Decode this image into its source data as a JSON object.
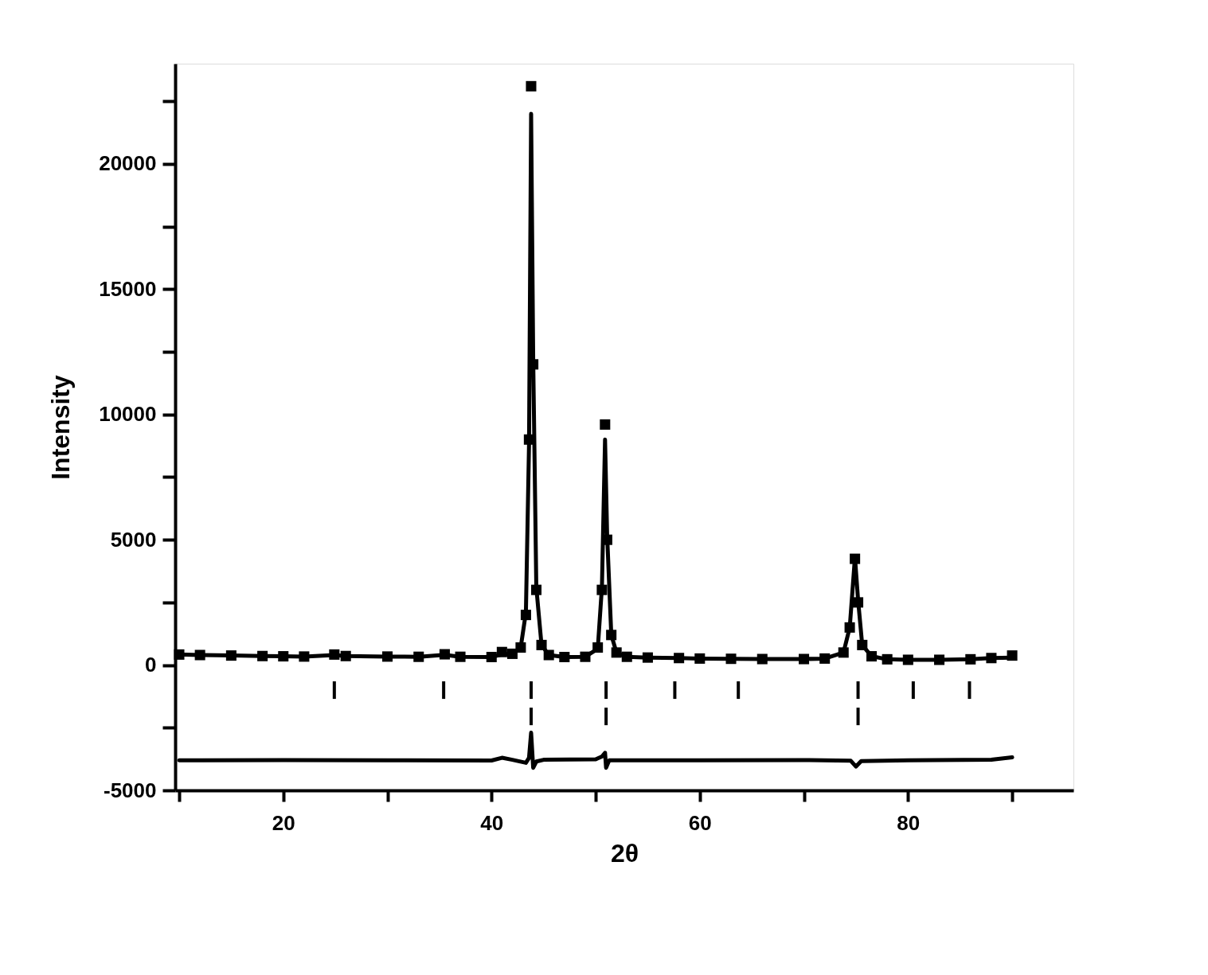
{
  "chart_data": {
    "type": "line",
    "xlabel": "2θ",
    "ylabel": "Intensity",
    "xlim": [
      10,
      95.5
    ],
    "ylim": [
      -5000,
      24000
    ],
    "xticks": [
      {
        "value": 10,
        "label": null
      },
      20,
      {
        "value": 30,
        "label": null
      },
      40,
      {
        "value": 50,
        "label": null
      },
      60,
      {
        "value": 70,
        "label": null
      },
      80,
      {
        "value": 90,
        "label": null
      }
    ],
    "yticks": [
      -5000,
      {
        "value": -2500,
        "label": null
      },
      0,
      {
        "value": 2500,
        "label": null
      },
      5000,
      {
        "value": 7500,
        "label": null
      },
      10000,
      {
        "value": 12500,
        "label": null
      },
      15000,
      {
        "value": 17500,
        "label": null
      },
      20000,
      {
        "value": 22500,
        "label": null
      }
    ],
    "grid": false,
    "series": [
      {
        "type": "scatter",
        "marker": "square",
        "color": "#000000",
        "x": [
          10,
          12,
          15,
          18,
          20,
          22,
          24.9,
          26,
          30,
          33,
          35.5,
          37,
          40,
          41,
          42,
          42.8,
          43.3,
          43.6,
          43.8,
          44.0,
          44.3,
          44.8,
          45.5,
          47,
          49,
          50.2,
          50.6,
          50.9,
          51.1,
          51.5,
          52,
          53,
          55,
          58,
          60,
          63,
          66,
          70,
          72,
          73.8,
          74.4,
          74.9,
          75.2,
          75.6,
          76.5,
          78,
          80,
          83,
          86,
          88,
          90
        ],
        "values": [
          420,
          400,
          380,
          360,
          350,
          340,
          420,
          360,
          340,
          330,
          430,
          330,
          320,
          520,
          450,
          700,
          2000,
          9000,
          23100,
          12000,
          3000,
          800,
          400,
          320,
          330,
          700,
          3000,
          9600,
          5000,
          1200,
          500,
          330,
          300,
          280,
          260,
          250,
          240,
          240,
          260,
          500,
          1500,
          4240,
          2500,
          800,
          350,
          230,
          210,
          210,
          230,
          280,
          380
        ]
      },
      {
        "line_style": "solid",
        "marker": "none",
        "color": "#000000",
        "x": [
          10,
          12,
          15,
          18,
          20,
          22,
          24.9,
          26,
          30,
          33,
          35.5,
          37,
          40,
          41,
          42,
          42.8,
          43.3,
          43.6,
          43.8,
          44.0,
          44.3,
          44.8,
          45.5,
          47,
          49,
          50.2,
          50.6,
          50.9,
          51.1,
          51.5,
          52,
          53,
          55,
          58,
          60,
          63,
          66,
          70,
          72,
          73.8,
          74.4,
          74.9,
          75.2,
          75.6,
          76.5,
          78,
          80,
          83,
          86,
          88,
          90
        ],
        "values": [
          420,
          400,
          380,
          360,
          350,
          340,
          400,
          360,
          340,
          330,
          410,
          330,
          320,
          430,
          450,
          700,
          2100,
          8800,
          22000,
          12200,
          3100,
          800,
          400,
          320,
          330,
          650,
          3100,
          9000,
          5200,
          1200,
          500,
          330,
          300,
          280,
          260,
          250,
          240,
          240,
          260,
          500,
          1500,
          4300,
          2600,
          800,
          350,
          230,
          210,
          210,
          230,
          280,
          300
        ]
      },
      {
        "line_style": "solid",
        "marker": "none",
        "color": "#000000",
        "x": [
          10,
          20,
          30,
          40,
          41,
          42,
          43.3,
          43.6,
          43.8,
          44.0,
          44.3,
          45,
          50,
          50.6,
          50.9,
          51.0,
          51.3,
          60,
          70,
          74.5,
          75.0,
          75.5,
          80,
          88,
          90
        ],
        "values": [
          -3800,
          -3790,
          -3800,
          -3810,
          -3700,
          -3780,
          -3900,
          -3700,
          -2700,
          -4100,
          -3850,
          -3780,
          -3760,
          -3650,
          -3500,
          -4100,
          -3800,
          -3800,
          -3790,
          -3820,
          -4050,
          -3830,
          -3800,
          -3780,
          -3680
        ]
      },
      {
        "type": "bar",
        "color": "#000000",
        "x": [
          24.9,
          35.4,
          43.8,
          51.0,
          57.6,
          63.7,
          75.2,
          80.5,
          85.9
        ],
        "base": [
          -1350,
          -1350,
          -1350,
          -1350,
          -1350,
          -1350,
          -1350,
          -1350,
          -1350
        ],
        "values": [
          700,
          700,
          700,
          700,
          700,
          700,
          700,
          700,
          700
        ]
      },
      {
        "type": "bar",
        "color": "#000000",
        "x": [
          43.8,
          51.0,
          75.2
        ],
        "base": [
          -2400,
          -2400,
          -2400
        ],
        "values": [
          700,
          700,
          700
        ]
      }
    ]
  }
}
